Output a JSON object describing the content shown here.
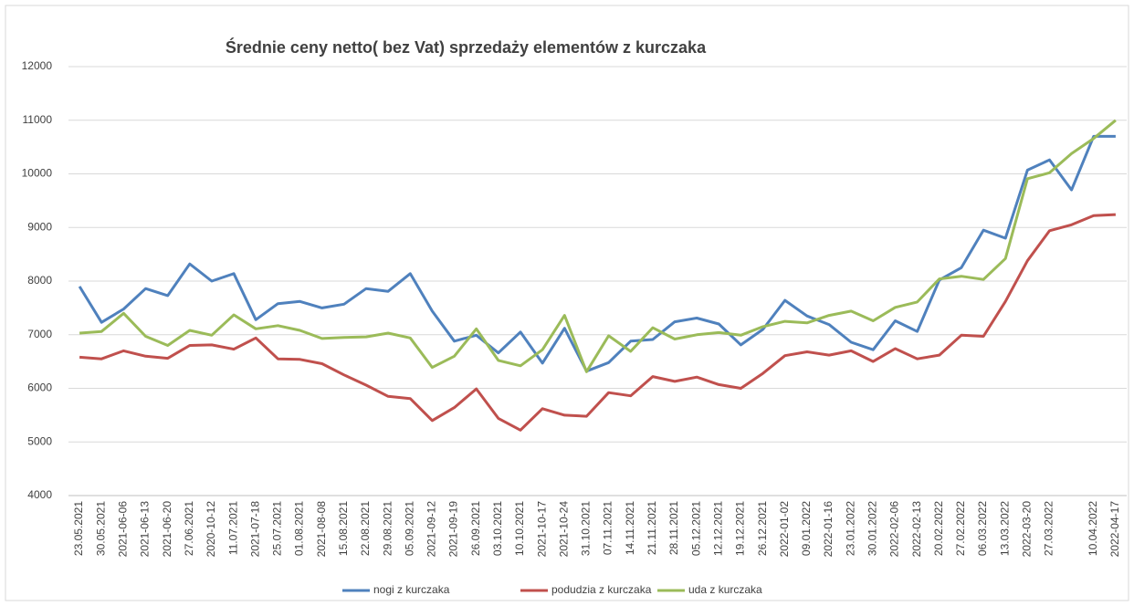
{
  "chart_data": {
    "type": "line",
    "title": "Średnie ceny netto( bez Vat) sprzedaży elementów z kurczaka",
    "categories": [
      "23.05.2021",
      "30.05.2021",
      "2021-06-06",
      "2021-06-13",
      "2021-06-20",
      "27.06.2021",
      "2020-10-12",
      "11.07.2021",
      "2021-07-18",
      "25.07.2021",
      "01.08.2021",
      "2021-08-08",
      "15.08.2021",
      "22.08.2021",
      "29.08.2021",
      "05.09.2021",
      "2021-09-12",
      "2021-09-19",
      "26.09.2021",
      "03.10.2021",
      "10.10.2021",
      "2021-10-17",
      "2021-10-24",
      "31.10.2021",
      "07.11.2021",
      "14.11.2021",
      "21.11.2021",
      "28.11.2021",
      "05.12.2021",
      "12.12.2021",
      "19.12.2021",
      "26.12.2021",
      "2022-01-02",
      "09.01.2022",
      "2022-01-16",
      "23.01.2022",
      "30.01.2022",
      "2022-02-06",
      "2022-02-13",
      "20.02.2022",
      "27.02.2022",
      "06.03.2022",
      "13.03.2022",
      "2022-03-20",
      "27.03.2022",
      null,
      "10.04.2022",
      "2022-04-17"
    ],
    "series": [
      {
        "name": "nogi z kurczaka",
        "color": "#4f81bd",
        "values": [
          7900,
          7230,
          7480,
          7860,
          7730,
          8320,
          8000,
          8140,
          7280,
          7580,
          7620,
          7500,
          7570,
          7860,
          7810,
          8140,
          7440,
          6880,
          6990,
          6660,
          7050,
          6470,
          7120,
          6320,
          6480,
          6880,
          6910,
          7240,
          7310,
          7200,
          6810,
          7100,
          7640,
          7350,
          7190,
          6860,
          6720,
          7260,
          7060,
          8020,
          8250,
          8950,
          8800,
          10070,
          10260,
          9700,
          10700,
          10700
        ]
      },
      {
        "name": "podudzia z kurczaka",
        "color": "#c0504d",
        "values": [
          6580,
          6550,
          6700,
          6600,
          6560,
          6800,
          6810,
          6730,
          6940,
          6550,
          6540,
          6460,
          6250,
          6060,
          5850,
          5810,
          5400,
          5640,
          5990,
          5440,
          5220,
          5620,
          5500,
          5480,
          5920,
          5860,
          6220,
          6130,
          6210,
          6070,
          6000,
          6280,
          6610,
          6680,
          6620,
          6700,
          6500,
          6740,
          6550,
          6620,
          6990,
          6970,
          7620,
          8380,
          8940,
          9050,
          9220,
          9240
        ]
      },
      {
        "name": "uda z kurczaka",
        "color": "#9bbb59",
        "values": [
          7030,
          7060,
          7400,
          6970,
          6800,
          7080,
          6990,
          7370,
          7110,
          7170,
          7080,
          6930,
          6950,
          6960,
          7030,
          6940,
          6390,
          6600,
          7110,
          6520,
          6420,
          6720,
          7360,
          6310,
          6980,
          6690,
          7130,
          6920,
          7000,
          7040,
          6990,
          7150,
          7250,
          7220,
          7360,
          7440,
          7260,
          7510,
          7610,
          8040,
          8090,
          8030,
          8420,
          9910,
          10020,
          10380,
          10660,
          11000
        ]
      }
    ],
    "ylim": [
      4000,
      12000
    ],
    "yticks": [
      4000,
      5000,
      6000,
      7000,
      8000,
      9000,
      10000,
      11000,
      12000
    ],
    "grid": true,
    "legend": "bottom"
  }
}
